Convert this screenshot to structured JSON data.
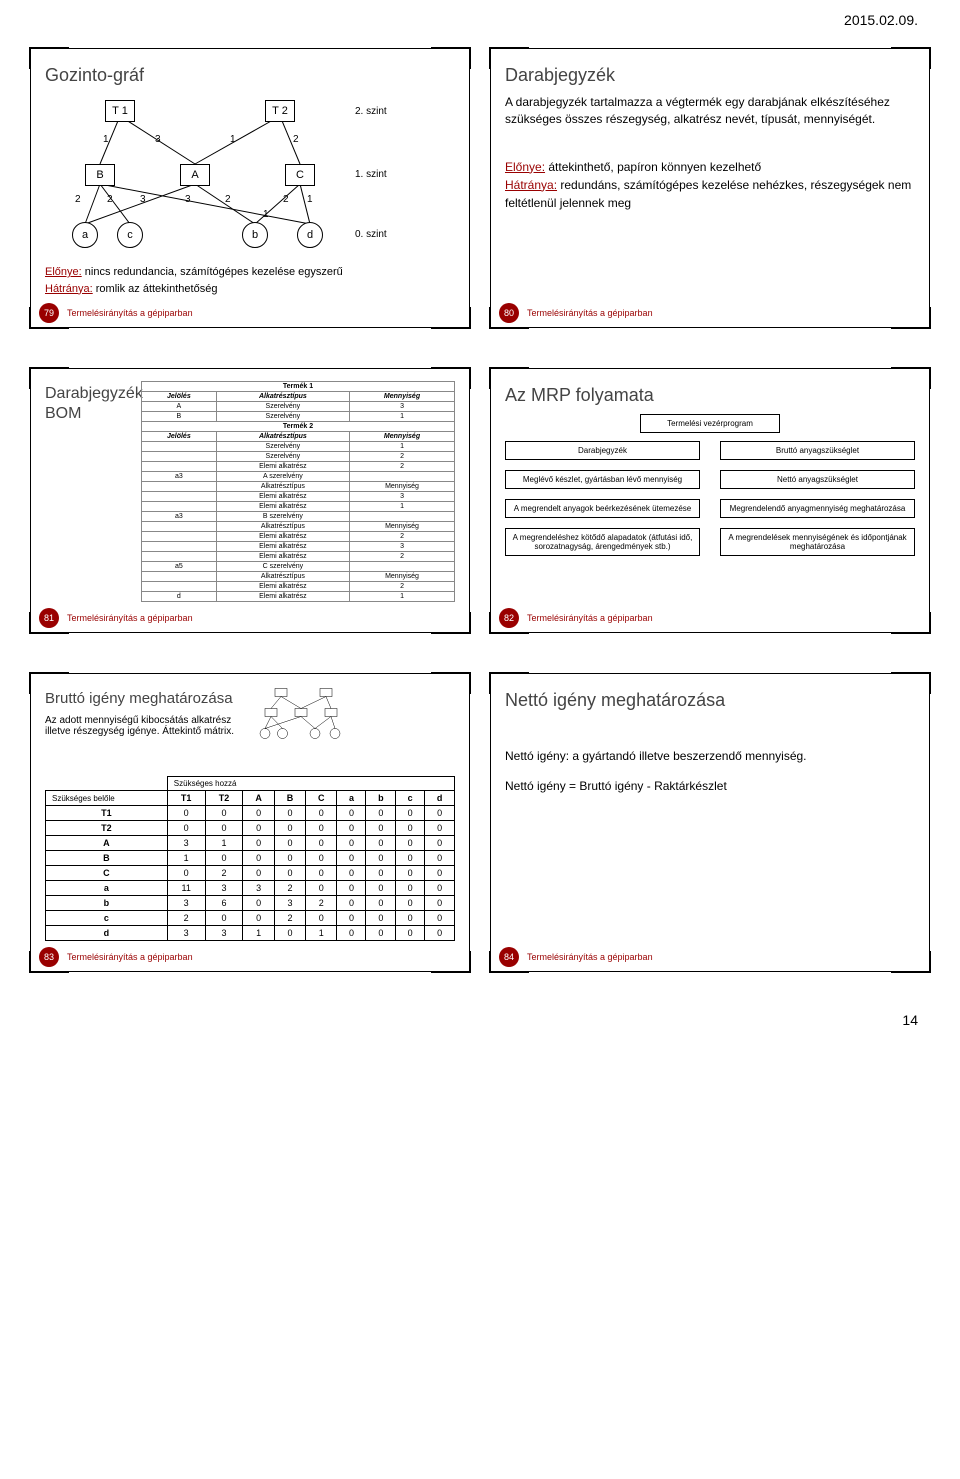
{
  "header_date": "2015.02.09.",
  "page_number": "14",
  "footer_text": "Termelésirányítás a gépiparban",
  "colors": {
    "accent": "#990000",
    "text": "#000000",
    "bg": "#ffffff"
  },
  "slide79": {
    "num": "79",
    "title": "Gozinto-gráf",
    "levels": {
      "l2": "2. szint",
      "l1": "1. szint",
      "l0": "0. szint"
    },
    "nodes_top": [
      "T 1",
      "T 2"
    ],
    "nodes_mid": [
      "B",
      "A",
      "C"
    ],
    "nodes_bot": [
      "a",
      "c",
      "b",
      "d"
    ],
    "edge_labels": [
      "1",
      "3",
      "1",
      "2",
      "2",
      "2",
      "3",
      "3",
      "2",
      "2",
      "1",
      "1"
    ],
    "pro_label": "Előnye:",
    "pro_text": " nincs redundancia, számítógépes kezelése egyszerű",
    "con_label": "Hátránya:",
    "con_text": " romlik az áttekinthetőség"
  },
  "slide80": {
    "num": "80",
    "title": "Darabjegyzék",
    "body1": "A darabjegyzék tartalmazza a végtermék egy darabjának elkészítéséhez szükséges összes részegység, alkatrész nevét, típusát, mennyiségét.",
    "pro_label": "Előnye:",
    "pro_text": " áttekinthető, papíron könnyen kezelhető",
    "con_label": "Hátránya:",
    "con_text": " redundáns, számítógépes kezelése nehézkes, részegységek nem feltétlenül jelennek meg"
  },
  "slide81": {
    "num": "81",
    "title1": "Darabjegyzék",
    "title2": "BOM",
    "t1": "Termék 1",
    "t2": "Termék 2",
    "cols": [
      "Jelölés",
      "Alkatrésztípus",
      "Mennyiség"
    ],
    "rows_t1": [
      [
        "A",
        "Szerelvény",
        "3"
      ],
      [
        "B",
        "Szerelvény",
        "1"
      ]
    ],
    "rows_t2": [
      [
        "",
        "Szerelvény",
        "1"
      ],
      [
        "",
        "Szerelvény",
        "2"
      ],
      [
        "",
        "Elemi alkatrész",
        "2"
      ],
      [
        "a3",
        "A szerelvény",
        ""
      ],
      [
        "",
        "Alkatrésztípus",
        "Mennyiség"
      ],
      [
        "",
        "Elemi alkatrész",
        "3"
      ],
      [
        "",
        "Elemi alkatrész",
        "1"
      ],
      [
        "a3",
        "B szerelvény",
        ""
      ],
      [
        "",
        "Alkatrésztípus",
        "Mennyiség"
      ],
      [
        "",
        "Elemi alkatrész",
        "2"
      ],
      [
        "",
        "Elemi alkatrész",
        "3"
      ],
      [
        "",
        "Elemi alkatrész",
        "2"
      ],
      [
        "a5",
        "C szerelvény",
        ""
      ],
      [
        "",
        "Alkatrésztípus",
        "Mennyiség"
      ],
      [
        "",
        "Elemi alkatrész",
        "2"
      ],
      [
        "d",
        "Elemi alkatrész",
        "1"
      ]
    ]
  },
  "slide82": {
    "num": "82",
    "title": "Az MRP folyamata",
    "boxes": {
      "b1": "Termelési vezérprogram",
      "b2": "Darabjegyzék",
      "b3": "Bruttó anyagszükséglet",
      "b4": "Meglévő készlet, gyártásban lévő mennyiség",
      "b5": "Nettó anyagszükséglet",
      "b6": "A megrendelt anyagok beérkezésének ütemezése",
      "b7": "Megrendelendő anyagmennyiség meghatározása",
      "b8": "A megrendeléshez kötődő alapadatok (átfutási idő, sorozatnagyság, árengedmények stb.)",
      "b9": "A megrendelések mennyiségének és időpontjának meghatározása"
    }
  },
  "slide83": {
    "num": "83",
    "title": "Bruttó igény meghatározása",
    "body": "Az adott mennyiségű kibocsátás alkatrész illetve részegység igénye. Áttekintő mátrix.",
    "matrix_head_row": "Szükséges hozzá",
    "matrix_head_col": "Szükséges belőle",
    "cols": [
      "",
      "T1",
      "T2",
      "A",
      "B",
      "C",
      "a",
      "b",
      "c",
      "d"
    ],
    "rows": [
      [
        "T1",
        "0",
        "0",
        "0",
        "0",
        "0",
        "0",
        "0",
        "0",
        "0"
      ],
      [
        "T2",
        "0",
        "0",
        "0",
        "0",
        "0",
        "0",
        "0",
        "0",
        "0"
      ],
      [
        "A",
        "3",
        "1",
        "0",
        "0",
        "0",
        "0",
        "0",
        "0",
        "0"
      ],
      [
        "B",
        "1",
        "0",
        "0",
        "0",
        "0",
        "0",
        "0",
        "0",
        "0"
      ],
      [
        "C",
        "0",
        "2",
        "0",
        "0",
        "0",
        "0",
        "0",
        "0",
        "0"
      ],
      [
        "a",
        "11",
        "3",
        "3",
        "2",
        "0",
        "0",
        "0",
        "0",
        "0"
      ],
      [
        "b",
        "3",
        "6",
        "0",
        "3",
        "2",
        "0",
        "0",
        "0",
        "0"
      ],
      [
        "c",
        "2",
        "0",
        "0",
        "2",
        "0",
        "0",
        "0",
        "0",
        "0"
      ],
      [
        "d",
        "3",
        "3",
        "1",
        "0",
        "1",
        "0",
        "0",
        "0",
        "0"
      ]
    ]
  },
  "slide84": {
    "num": "84",
    "title": "Nettó igény meghatározása",
    "line1": "Nettó igény: a gyártandó illetve beszerzendő mennyiség.",
    "line2": "Nettó igény = Bruttó igény - Raktárkészlet"
  }
}
